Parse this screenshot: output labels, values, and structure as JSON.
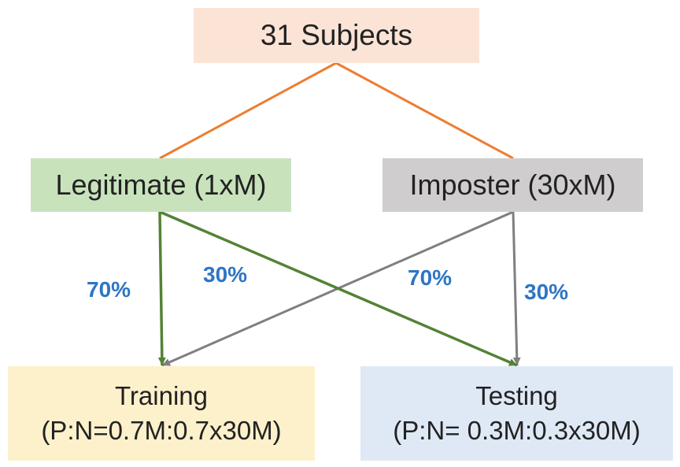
{
  "nodes": {
    "subjects": "31 Subjects",
    "legitimate": "Legitimate (1xM)",
    "imposter": "Imposter (30xM)",
    "training": {
      "line1": "Training",
      "line2": "(P:N=0.7M:0.7x30M)"
    },
    "testing": {
      "line1": "Testing",
      "line2": "(P:N= 0.3M:0.3x30M)"
    }
  },
  "edge_labels": {
    "legit_to_training": "70%",
    "legit_to_testing": "30%",
    "imposter_to_training": "70%",
    "imposter_to_testing": "30%"
  },
  "colors": {
    "split_lines": "#ed7d31",
    "legitimate_arrows": "#548235",
    "imposter_arrows": "#7f7f7f",
    "percent_labels": "#2e75c4"
  }
}
